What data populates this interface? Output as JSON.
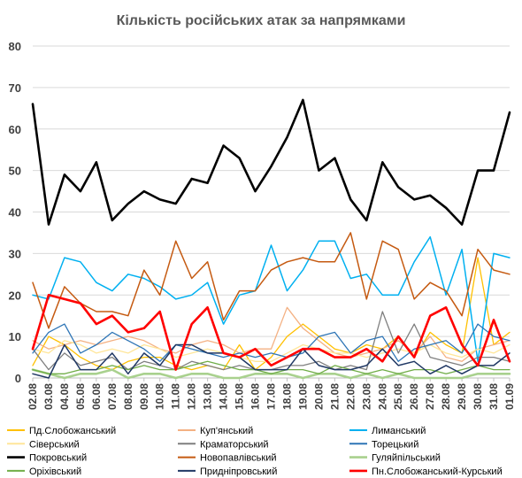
{
  "chart_data": {
    "type": "line",
    "title": "Кількість російських атак за напрямками",
    "xlabel": "",
    "ylabel": "",
    "ylim": [
      0,
      80
    ],
    "yticks": [
      0,
      10,
      20,
      30,
      40,
      50,
      60,
      70,
      80
    ],
    "grid": true,
    "legend_position": "bottom",
    "categories": [
      "02.08",
      "03.08",
      "04.08",
      "05.08",
      "06.08",
      "07.08",
      "08.08",
      "09.08",
      "10.08",
      "11.08",
      "12.08",
      "13.08",
      "14.08",
      "15.08",
      "16.08",
      "17.08",
      "18.08",
      "19.08",
      "20.08",
      "21.08",
      "22.08",
      "23.08",
      "24.08",
      "25.08",
      "26.08",
      "27.08",
      "28.08",
      "29.08",
      "30.08",
      "31.08",
      "01.09"
    ],
    "x_tick_labels": [
      "02.08",
      "03.08",
      "04.08",
      "05.08",
      "06.08",
      "07.08",
      "08.08",
      "09.08",
      "10.08",
      "11.08",
      "12.08",
      "13.08",
      "14.08",
      "15.08",
      "16.08",
      "17.08",
      "18.08",
      "19.08",
      "20.08",
      "21.08",
      "22.08",
      "23.08",
      "24.08",
      "25.08",
      "26.08",
      "27.08",
      "28.08",
      "29.08",
      "30.08",
      "31.08",
      "01.09"
    ],
    "series": [
      {
        "name": "Пд.Слобожанський",
        "color": "#ffc000",
        "width": 1.3,
        "values": [
          3,
          10,
          8,
          5,
          3,
          2,
          4,
          5,
          5,
          3,
          2,
          3,
          2,
          8,
          2,
          5,
          10,
          13,
          10,
          7,
          6,
          8,
          7,
          10,
          5,
          11,
          8,
          6,
          29,
          8,
          11
        ]
      },
      {
        "name": "Куп'янський",
        "color": "#f4b183",
        "width": 1.3,
        "values": [
          9,
          7,
          8,
          9,
          8,
          9,
          10,
          9,
          7,
          6,
          8,
          9,
          8,
          6,
          7,
          7,
          17,
          12,
          9,
          6,
          5,
          6,
          7,
          9,
          6,
          10,
          5,
          4,
          7,
          8,
          9
        ]
      },
      {
        "name": "Лиманський",
        "color": "#00b0f0",
        "width": 1.5,
        "values": [
          20,
          19,
          29,
          28,
          23,
          21,
          25,
          24,
          22,
          19,
          20,
          23,
          13,
          20,
          21,
          32,
          21,
          26,
          33,
          33,
          24,
          25,
          20,
          20,
          28,
          34,
          20,
          31,
          4,
          30,
          29
        ]
      },
      {
        "name": "Сіверський",
        "color": "#ffe699",
        "width": 1.3,
        "values": [
          7,
          6,
          9,
          8,
          6,
          7,
          6,
          8,
          7,
          5,
          6,
          7,
          6,
          5,
          4,
          4,
          6,
          8,
          7,
          6,
          6,
          5,
          6,
          7,
          6,
          8,
          6,
          5,
          7,
          6,
          8
        ]
      },
      {
        "name": "Краматорський",
        "color": "#7f7f7f",
        "width": 1.3,
        "values": [
          7,
          2,
          6,
          3,
          4,
          5,
          2,
          4,
          3,
          2,
          4,
          3,
          2,
          3,
          2,
          2,
          3,
          3,
          4,
          2,
          3,
          2,
          16,
          6,
          13,
          5,
          4,
          3,
          5,
          5,
          4
        ]
      },
      {
        "name": "Торецький",
        "color": "#2e75b6",
        "width": 1.3,
        "values": [
          6,
          11,
          13,
          6,
          8,
          11,
          9,
          7,
          4,
          8,
          7,
          6,
          5,
          6,
          5,
          6,
          5,
          6,
          10,
          11,
          6,
          9,
          10,
          4,
          7,
          8,
          9,
          6,
          13,
          10,
          9
        ]
      },
      {
        "name": "Покровський",
        "color": "#000000",
        "width": 2.6,
        "values": [
          66,
          37,
          49,
          45,
          52,
          38,
          42,
          45,
          43,
          42,
          48,
          47,
          56,
          53,
          45,
          51,
          58,
          67,
          50,
          53,
          43,
          38,
          52,
          46,
          43,
          44,
          41,
          37,
          50,
          50,
          64
        ]
      },
      {
        "name": "Новопавлівський",
        "color": "#c55a11",
        "width": 1.5,
        "values": [
          23,
          12,
          22,
          18,
          16,
          16,
          15,
          26,
          20,
          33,
          24,
          28,
          14,
          21,
          21,
          26,
          28,
          29,
          28,
          28,
          35,
          19,
          33,
          31,
          19,
          23,
          21,
          15,
          31,
          26,
          25
        ]
      },
      {
        "name": "Гуляйпільський",
        "color": "#a9d18e",
        "width": 2.6,
        "values": [
          2,
          1,
          0,
          1,
          1,
          2,
          0,
          1,
          1,
          0,
          1,
          1,
          0,
          0,
          1,
          1,
          1,
          0,
          1,
          1,
          0,
          1,
          0,
          1,
          0,
          0,
          0,
          0,
          1,
          1,
          1
        ]
      },
      {
        "name": "Оріхівський",
        "color": "#70ad47",
        "width": 1.3,
        "values": [
          2,
          1,
          1,
          2,
          2,
          3,
          2,
          3,
          2,
          2,
          3,
          4,
          3,
          2,
          2,
          1,
          2,
          2,
          1,
          3,
          2,
          1,
          2,
          1,
          2,
          2,
          1,
          2,
          3,
          2,
          2
        ]
      },
      {
        "name": "Придніпровський",
        "color": "#203864",
        "width": 1.5,
        "values": [
          1,
          0,
          8,
          2,
          2,
          6,
          1,
          6,
          3,
          8,
          8,
          6,
          6,
          5,
          2,
          2,
          2,
          7,
          3,
          2,
          2,
          3,
          7,
          3,
          4,
          1,
          3,
          1,
          3,
          3,
          6
        ]
      },
      {
        "name": "Пн.Слобожанський-Курський",
        "color": "#ff0000",
        "width": 2.6,
        "values": [
          7,
          20,
          19,
          18,
          13,
          15,
          11,
          12,
          16,
          2,
          13,
          17,
          6,
          5,
          7,
          3,
          5,
          7,
          7,
          5,
          5,
          7,
          4,
          10,
          5,
          15,
          17,
          8,
          3,
          14,
          4
        ]
      }
    ]
  }
}
